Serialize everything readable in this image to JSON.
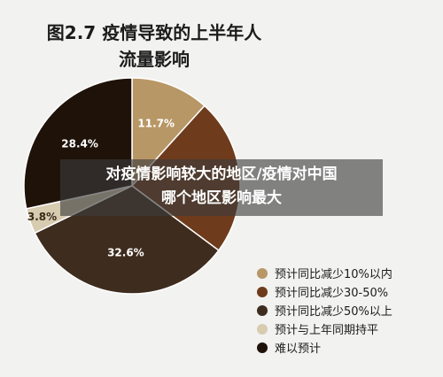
{
  "chart_data": {
    "type": "pie",
    "title": "图2.7 疫情导致的上半年人",
    "subtitle": "流量影响",
    "slices": [
      {
        "label": "预计同比减少10%以内",
        "value": 11.7,
        "value_label": "11.7%",
        "color": "#b89766"
      },
      {
        "label": "预计同比减少30-50%",
        "value": 23.5,
        "value_label": "",
        "color": "#6e3c1c"
      },
      {
        "label": "预计同比减少50%以上",
        "value": 32.6,
        "value_label": "32.6%",
        "color": "#3e2c1e"
      },
      {
        "label": "预计与上年同期持平",
        "value": 3.8,
        "value_label": "3.8%",
        "color": "#d7cbb0"
      },
      {
        "label": "难以预计",
        "value": 28.4,
        "value_label": "28.4%",
        "color": "#1f1208"
      }
    ],
    "legend_position": "bottom-right"
  },
  "overlay": {
    "line1": "对疫情影响较大的地区/疫情对中国",
    "line2": "哪个地区影响最大"
  }
}
